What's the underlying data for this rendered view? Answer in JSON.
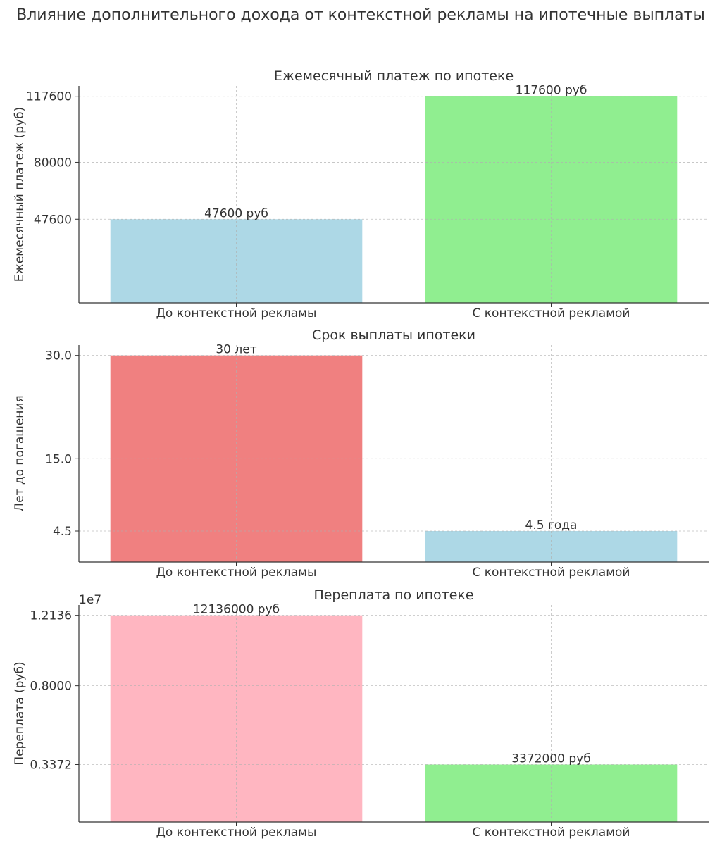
{
  "figure": {
    "suptitle": "Влияние дополнительного дохода от контекстной рекламы на ипотечные выплаты"
  },
  "chart_data": [
    {
      "type": "bar",
      "title": "Ежемесячный платеж по ипотеке",
      "xlabel": "",
      "ylabel": "Ежемесячный платеж (руб)",
      "categories": [
        "До контекстной рекламы",
        "С контекстной рекламой"
      ],
      "values": [
        47600,
        117600
      ],
      "bar_labels": [
        "47600 руб",
        "117600 руб"
      ],
      "colors": [
        "#add8e6",
        "#90ee90"
      ],
      "yticks": [
        47600,
        80000,
        117600
      ],
      "ytick_labels": [
        "47600",
        "80000",
        "117600"
      ],
      "ylim": [
        0,
        123480
      ],
      "grid": true
    },
    {
      "type": "bar",
      "title": "Срок выплаты ипотеки",
      "xlabel": "",
      "ylabel": "Лет до погашения",
      "categories": [
        "До контекстной рекламы",
        "С контекстной рекламой"
      ],
      "values": [
        30,
        4.5
      ],
      "bar_labels": [
        "30 лет",
        "4.5 года"
      ],
      "colors": [
        "#f08080",
        "#add8e6"
      ],
      "yticks": [
        4.5,
        15,
        30
      ],
      "ytick_labels": [
        "4.5",
        "15.0",
        "30.0"
      ],
      "ylim": [
        0,
        31.5
      ],
      "grid": true
    },
    {
      "type": "bar",
      "title": "Переплата по ипотеке",
      "xlabel": "",
      "ylabel": "Переплата (руб)",
      "offset_text": "1e7",
      "categories": [
        "До контекстной рекламы",
        "С контекстной рекламой"
      ],
      "values": [
        12136000,
        3372000
      ],
      "bar_labels": [
        "12136000 руб",
        "3372000 руб"
      ],
      "colors": [
        "#ffb6c1",
        "#90ee90"
      ],
      "yticks": [
        3372000,
        8000000,
        12136000
      ],
      "ytick_labels": [
        "0.3372",
        "0.8000",
        "1.2136"
      ],
      "ylim": [
        0,
        12742800
      ],
      "grid": true
    }
  ]
}
